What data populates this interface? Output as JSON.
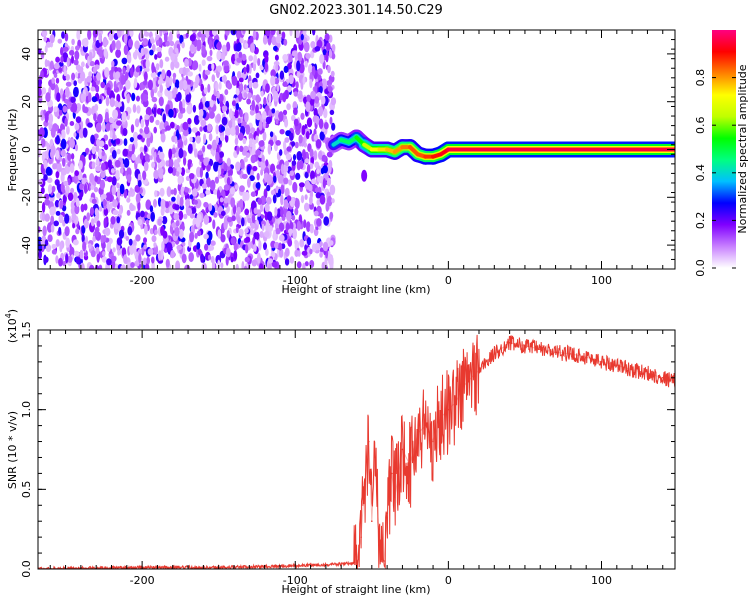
{
  "figure_title": "GN02.2023.301.14.50.C29",
  "colorbar": {
    "label": "Normalized spectral amplitude",
    "ticks": [
      "0.0",
      "0.2",
      "0.4",
      "0.6",
      "0.8"
    ],
    "tick_values": [
      0.0,
      0.2,
      0.4,
      0.6,
      0.8
    ],
    "range": [
      0,
      1
    ],
    "colormap": [
      "#ffffff",
      "#c880ff",
      "#8000ff",
      "#0000ff",
      "#00c0ff",
      "#00ff80",
      "#00ff00",
      "#c0ff00",
      "#ffff00",
      "#ff8000",
      "#ff0000",
      "#ff0080"
    ]
  },
  "chart_data": [
    {
      "type": "heatmap",
      "title": "",
      "xlabel": "Height of straight line (km)",
      "ylabel": "Frequency (Hz)",
      "xlim": [
        -268,
        148
      ],
      "ylim": [
        -50,
        50
      ],
      "x_ticks": [
        -200,
        -100,
        0,
        100
      ],
      "x_tick_labels": [
        "-200",
        "-100",
        "0",
        "100"
      ],
      "y_ticks": [
        -40,
        -20,
        0,
        20,
        40
      ],
      "y_tick_labels": [
        "-40",
        "-20",
        "0",
        "20",
        "40"
      ],
      "noise_region_x": [
        -268,
        -75
      ],
      "noise_amplitude": 0.05,
      "signal_track": {
        "x": [
          -75,
          -70,
          -65,
          -60,
          -55,
          -50,
          -45,
          -40,
          -35,
          -30,
          -25,
          -20,
          -15,
          -10,
          -5,
          0,
          10,
          50,
          100,
          148
        ],
        "frequency": [
          2,
          4,
          3,
          5,
          2,
          0,
          0,
          0,
          -1,
          1,
          1,
          -2,
          -3,
          -3,
          -2,
          0,
          0,
          0,
          0,
          0
        ],
        "amplitude": [
          0.3,
          0.5,
          0.45,
          0.5,
          0.6,
          0.7,
          0.75,
          0.75,
          0.8,
          0.8,
          0.85,
          0.85,
          0.85,
          0.9,
          0.9,
          0.95,
          0.95,
          0.95,
          0.95,
          0.95
        ]
      }
    },
    {
      "type": "line",
      "title": "",
      "xlabel": "Height of straight line (km)",
      "ylabel": "SNR (10 * v/v)",
      "y_multiplier_label": "(x10",
      "y_multiplier_exponent": "4",
      "xlim": [
        -268,
        148
      ],
      "ylim": [
        0,
        1.5
      ],
      "x_ticks": [
        -200,
        -100,
        0,
        100
      ],
      "x_tick_labels": [
        "-200",
        "-100",
        "0",
        "100"
      ],
      "y_ticks": [
        0,
        0.5,
        1.0,
        1.5
      ],
      "y_tick_labels": [
        "0.0",
        "0.5",
        "1.0",
        "1.5"
      ],
      "series": [
        {
          "color": "#e8392f",
          "x": [
            -268,
            -200,
            -150,
            -100,
            -70,
            -60,
            -57,
            -55,
            -52,
            -50,
            -48,
            -45,
            -42,
            -40,
            -37,
            -35,
            -30,
            -25,
            -20,
            -15,
            -10,
            -5,
            0,
            5,
            10,
            20,
            30,
            40,
            50,
            60,
            70,
            80,
            90,
            100,
            110,
            120,
            130,
            140,
            148
          ],
          "values": [
            0.0,
            0.01,
            0.01,
            0.02,
            0.03,
            0.04,
            0.2,
            0.5,
            0.8,
            0.3,
            0.7,
            0.15,
            0.05,
            0.35,
            0.6,
            0.45,
            0.75,
            0.65,
            0.85,
            0.9,
            0.8,
            0.95,
            1.0,
            1.05,
            1.15,
            1.25,
            1.35,
            1.42,
            1.4,
            1.38,
            1.36,
            1.35,
            1.33,
            1.3,
            1.28,
            1.25,
            1.23,
            1.2,
            1.18
          ]
        }
      ]
    }
  ]
}
